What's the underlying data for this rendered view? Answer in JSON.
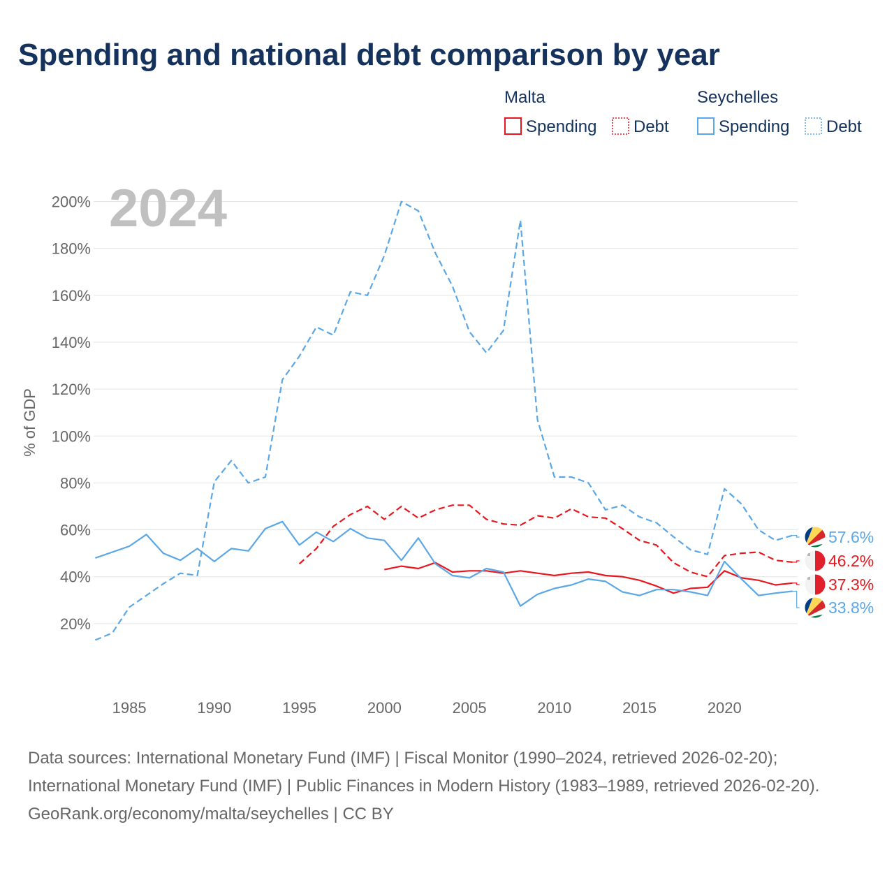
{
  "chart_data": {
    "type": "line",
    "title": "Spending and national debt comparison by year",
    "highlight_year": "2024",
    "ylabel": "% of GDP",
    "xlim": [
      1982.9,
      2024.3
    ],
    "ylim": [
      0,
      210
    ],
    "x_ticks": [
      1985,
      1990,
      1995,
      2000,
      2005,
      2010,
      2015,
      2020
    ],
    "y_ticks": [
      20,
      40,
      60,
      80,
      100,
      120,
      140,
      160,
      180,
      200
    ],
    "y_tick_suffix": "%",
    "legend": {
      "groups": [
        {
          "country": "Malta",
          "color": "#e8171f",
          "items": [
            "Spending",
            "Debt"
          ]
        },
        {
          "country": "Seychelles",
          "color": "#5ba7e6",
          "items": [
            "Spending",
            "Debt"
          ]
        }
      ]
    },
    "series": [
      {
        "name": "Seychelles Debt",
        "country": "Seychelles",
        "metric": "Debt",
        "color": "#5ba7e6",
        "dashed": true,
        "x": [
          1983,
          1984,
          1985,
          1986,
          1987,
          1988,
          1989,
          1990,
          1991,
          1992,
          1993,
          1994,
          1995,
          1996,
          1997,
          1998,
          1999,
          2000,
          2001,
          2002,
          2003,
          2004,
          2005,
          2006,
          2007,
          2008,
          2009,
          2010,
          2011,
          2012,
          2013,
          2014,
          2015,
          2016,
          2017,
          2018,
          2019,
          2020,
          2021,
          2022,
          2023,
          2024
        ],
        "values": [
          13,
          16,
          27,
          32,
          37,
          41.5,
          40.5,
          80.5,
          89.5,
          80,
          82.5,
          124,
          134,
          146.5,
          143,
          161.5,
          160,
          177,
          200,
          196,
          178,
          164,
          144.5,
          135.5,
          145,
          192,
          107,
          82.5,
          82.5,
          80,
          68.5,
          70.5,
          65.5,
          63,
          57,
          51.5,
          49.5,
          77.5,
          71,
          60,
          55.5,
          57.6
        ],
        "end_label": "57.6%"
      },
      {
        "name": "Malta Debt",
        "country": "Malta",
        "metric": "Debt",
        "color": "#e8171f",
        "dashed": true,
        "x": [
          1995,
          1996,
          1997,
          1998,
          1999,
          2000,
          2001,
          2002,
          2003,
          2004,
          2005,
          2006,
          2007,
          2008,
          2009,
          2010,
          2011,
          2012,
          2013,
          2014,
          2015,
          2016,
          2017,
          2018,
          2019,
          2020,
          2021,
          2022,
          2023,
          2024
        ],
        "values": [
          45.5,
          52,
          61.5,
          66.5,
          70,
          64.5,
          70,
          65,
          68.5,
          70.5,
          70.5,
          64.5,
          62.5,
          62,
          66,
          65,
          69,
          65.5,
          65,
          60.5,
          55.5,
          53.5,
          46,
          42,
          40,
          49,
          50,
          50.5,
          47,
          46.2
        ],
        "end_label": "46.2%"
      },
      {
        "name": "Malta Spending",
        "country": "Malta",
        "metric": "Spending",
        "color": "#e8171f",
        "dashed": false,
        "x": [
          2000,
          2001,
          2002,
          2003,
          2004,
          2005,
          2006,
          2007,
          2008,
          2009,
          2010,
          2011,
          2012,
          2013,
          2014,
          2015,
          2016,
          2017,
          2018,
          2019,
          2020,
          2021,
          2022,
          2023,
          2024
        ],
        "values": [
          43,
          44.5,
          43.5,
          46,
          42,
          42.5,
          42.5,
          41.5,
          42.5,
          41.5,
          40.5,
          41.5,
          42,
          40.5,
          40,
          38.5,
          36,
          33,
          35,
          35.5,
          42.5,
          39.5,
          38.5,
          36.5,
          37.3
        ],
        "end_label": "37.3%"
      },
      {
        "name": "Seychelles Spending",
        "country": "Seychelles",
        "metric": "Spending",
        "color": "#5ba7e6",
        "dashed": false,
        "x": [
          1983,
          1984,
          1985,
          1986,
          1987,
          1988,
          1989,
          1990,
          1991,
          1992,
          1993,
          1994,
          1995,
          1996,
          1997,
          1998,
          1999,
          2000,
          2001,
          2002,
          2003,
          2004,
          2005,
          2006,
          2007,
          2008,
          2009,
          2010,
          2011,
          2012,
          2013,
          2014,
          2015,
          2016,
          2017,
          2018,
          2019,
          2020,
          2021,
          2022,
          2023,
          2024
        ],
        "values": [
          48,
          50.5,
          53,
          58,
          50,
          47,
          52,
          46.5,
          52,
          51,
          60.5,
          63.5,
          53.5,
          59,
          55,
          60.5,
          56.5,
          55.5,
          47,
          56.5,
          45.5,
          40.5,
          39.5,
          43.5,
          42,
          27.5,
          32.5,
          35,
          36.5,
          39,
          38,
          33.5,
          32,
          34.5,
          34.5,
          33.5,
          32,
          46.5,
          39,
          32,
          33,
          33.8
        ],
        "end_label": "33.8%"
      }
    ]
  },
  "source": {
    "line1": "Data sources: International Monetary Fund (IMF) | Fiscal Monitor (1990–2024, retrieved 2026-02-20); International Monetary Fund (IMF) | Public Finances in Modern History (1983–1989, retrieved 2026-02-20).",
    "line2": "GeoRank.org/economy/malta/seychelles | CC BY"
  }
}
